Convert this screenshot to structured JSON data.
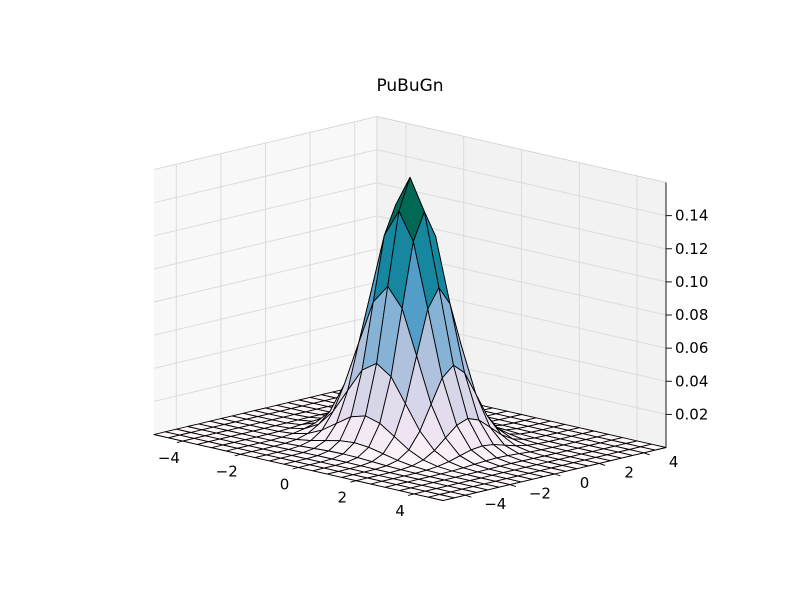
{
  "chart_data": {
    "type": "surface",
    "title": "PuBuGn",
    "colormap": "PuBuGn",
    "function": "bivariate normal density, mean (0, 0), sigma 1",
    "x": [
      -5.0,
      -4.5,
      -4.0,
      -3.5,
      -3.0,
      -2.5,
      -2.0,
      -1.5,
      -1.0,
      -0.5,
      0.0,
      0.5,
      1.0,
      1.5,
      2.0,
      2.5,
      3.0,
      3.5,
      4.0,
      4.5,
      5.0
    ],
    "y": [
      -5.0,
      -4.5,
      -4.0,
      -3.5,
      -3.0,
      -2.5,
      -2.0,
      -1.5,
      -1.0,
      -0.5,
      0.0,
      0.5,
      1.0,
      1.5,
      2.0,
      2.5,
      3.0,
      3.5,
      4.0,
      4.5,
      5.0
    ],
    "z_peak": 0.159,
    "xlim": [
      -5,
      5
    ],
    "ylim": [
      -5,
      5
    ],
    "zlim": [
      0,
      0.16
    ],
    "x_ticks": [
      "−4",
      "−2",
      "0",
      "2",
      "4"
    ],
    "y_ticks": [
      "−4",
      "−2",
      "0",
      "2",
      "4"
    ],
    "z_ticks": [
      "0.02",
      "0.04",
      "0.06",
      "0.08",
      "0.10",
      "0.12",
      "0.14"
    ],
    "xlabel": "",
    "ylabel": "",
    "zlabel": "",
    "grid": true,
    "colormap_stops": [
      "#fff7fb",
      "#ece2f0",
      "#d0d1e6",
      "#a6bddb",
      "#67a9cf",
      "#3690c0",
      "#02818a",
      "#016c59",
      "#014636"
    ],
    "edge_color": "#000000"
  }
}
